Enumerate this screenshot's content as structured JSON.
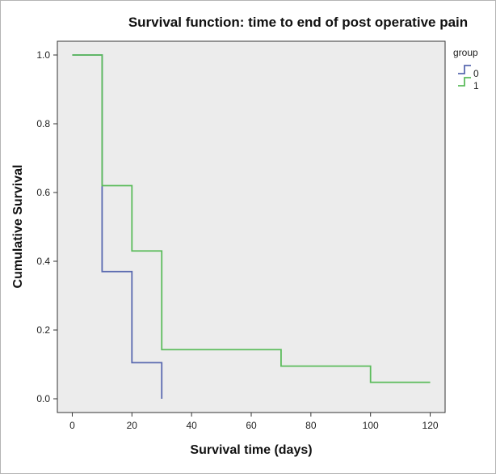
{
  "chart_data": {
    "type": "line",
    "step": true,
    "title": "Survival function: time to end of post operative pain",
    "xlabel": "Survival time (days)",
    "ylabel": "Cumulative Survival",
    "xlim": [
      -5,
      125
    ],
    "ylim": [
      -0.04,
      1.04
    ],
    "x_ticks": [
      0,
      20,
      40,
      60,
      80,
      100,
      120
    ],
    "x_tick_labels": [
      "0",
      "20",
      "40",
      "60",
      "80",
      "100",
      "120"
    ],
    "y_ticks": [
      0.0,
      0.2,
      0.4,
      0.6,
      0.8,
      1.0
    ],
    "y_tick_labels": [
      "0.0",
      "0.2",
      "0.4",
      "0.6",
      "0.8",
      "1.0"
    ],
    "grid": false,
    "legend": {
      "title": "group",
      "placement": "right"
    },
    "series": [
      {
        "name": "0",
        "color": "#5a6ab0",
        "x": [
          0,
          10,
          20,
          30
        ],
        "y": [
          1.0,
          0.37,
          0.105,
          0.0
        ]
      },
      {
        "name": "1",
        "color": "#5cbc5c",
        "x": [
          0,
          10,
          20,
          30,
          70,
          100,
          120
        ],
        "y": [
          1.0,
          0.62,
          0.43,
          0.143,
          0.095,
          0.048,
          0.048
        ]
      }
    ]
  },
  "colors": {
    "plot_background": "#ececec",
    "axis": "#333333"
  }
}
